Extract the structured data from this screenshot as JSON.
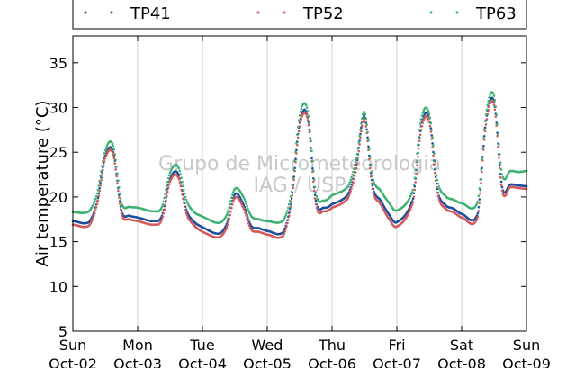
{
  "chart_data": {
    "type": "scatter",
    "ylabel": "Air temperature (°C)",
    "ylim": [
      5,
      38
    ],
    "yticks": [
      5,
      10,
      15,
      20,
      25,
      30,
      35
    ],
    "xlim": [
      "2016-10-02",
      "2016-10-09"
    ],
    "grid": "vertical",
    "legend_placement": "top",
    "x_ticks": [
      {
        "day": "Sun",
        "date": "Oct-02"
      },
      {
        "day": "Mon",
        "date": "Oct-03"
      },
      {
        "day": "Tue",
        "date": "Oct-04"
      },
      {
        "day": "Wed",
        "date": "Oct-05"
      },
      {
        "day": "Thu",
        "date": "Oct-06"
      },
      {
        "day": "Fri",
        "date": "Oct-07"
      },
      {
        "day": "Sat",
        "date": "Oct-08"
      },
      {
        "day": "Sun",
        "date": "Oct-09"
      }
    ],
    "x_datetime_hours": [
      0,
      6,
      9,
      12,
      15,
      18,
      21,
      24,
      30,
      33,
      36,
      39,
      42,
      45,
      48,
      54,
      57,
      60,
      63,
      66,
      69,
      72,
      78,
      81,
      84,
      87,
      90,
      93,
      96,
      102,
      105,
      108,
      111,
      114,
      117,
      120,
      126,
      129,
      132,
      135,
      138,
      141,
      144,
      150,
      153,
      156,
      159,
      162,
      165,
      168
    ],
    "series": [
      {
        "name": "TP41",
        "color": "#1f4e9c",
        "values": [
          17.3,
          17.2,
          19.5,
          24.6,
          25.0,
          18.5,
          17.9,
          17.7,
          17.3,
          17.9,
          22.0,
          22.6,
          18.6,
          17.2,
          16.6,
          15.9,
          17.0,
          20.3,
          19.3,
          16.8,
          16.5,
          16.2,
          16.1,
          19.8,
          28.3,
          28.9,
          19.6,
          18.8,
          19.2,
          20.3,
          23.6,
          29.1,
          21.3,
          19.6,
          18.1,
          17.2,
          19.8,
          27.9,
          28.8,
          20.9,
          19.1,
          18.7,
          18.1,
          18.2,
          28.5,
          30.6,
          21.1,
          21.4,
          21.3,
          21.2
        ]
      },
      {
        "name": "TP52",
        "color": "#d45a5a",
        "values": [
          16.9,
          16.8,
          19.2,
          24.3,
          24.7,
          18.2,
          17.5,
          17.3,
          16.9,
          17.5,
          21.7,
          22.2,
          18.2,
          16.8,
          16.1,
          15.5,
          16.6,
          19.9,
          18.9,
          16.4,
          16.1,
          15.8,
          15.7,
          19.5,
          27.9,
          28.6,
          19.2,
          18.4,
          18.8,
          19.9,
          23.2,
          28.7,
          20.9,
          19.2,
          17.6,
          16.7,
          19.4,
          27.5,
          28.4,
          20.5,
          18.7,
          18.3,
          17.7,
          17.8,
          28.1,
          30.3,
          20.7,
          21.1,
          21.0,
          20.9
        ]
      },
      {
        "name": "TP63",
        "color": "#3cb371",
        "values": [
          18.3,
          18.4,
          20.4,
          25.2,
          25.7,
          19.4,
          18.9,
          18.8,
          18.4,
          18.9,
          22.7,
          23.4,
          19.7,
          18.3,
          17.8,
          17.1,
          18.0,
          20.9,
          20.1,
          17.9,
          17.5,
          17.3,
          17.4,
          20.6,
          29.1,
          29.6,
          20.5,
          19.6,
          20.2,
          21.2,
          24.3,
          29.5,
          22.3,
          20.7,
          19.4,
          18.5,
          20.8,
          28.7,
          29.3,
          21.9,
          20.1,
          19.7,
          19.3,
          19.5,
          29.2,
          31.3,
          22.5,
          22.9,
          22.8,
          22.9
        ]
      }
    ],
    "watermark": [
      "Grupo de Micrometeorologia",
      "IAG / USP"
    ]
  }
}
